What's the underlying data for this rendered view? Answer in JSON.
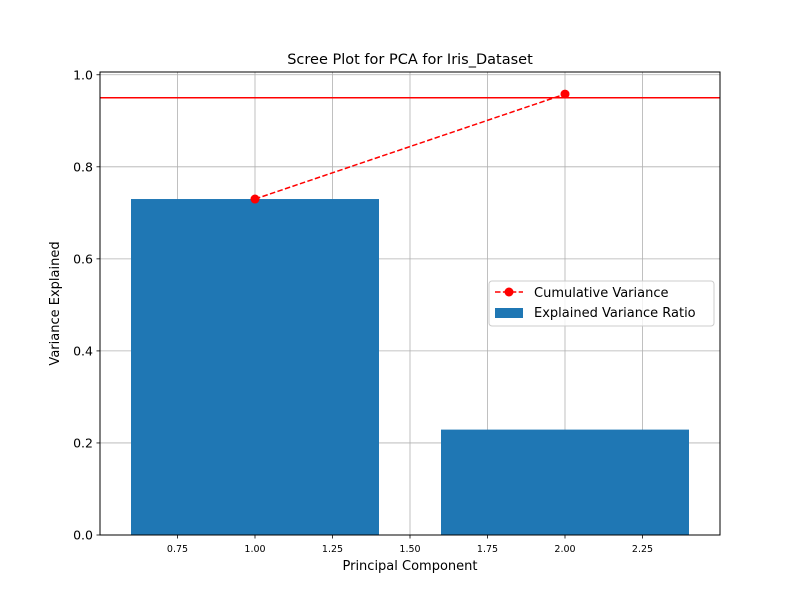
{
  "chart_data": {
    "type": "bar",
    "title": "Scree Plot for PCA for Iris_Dataset",
    "xlabel": "Principal Component",
    "ylabel": "Variance Explained",
    "xlim": [
      0.5,
      2.5
    ],
    "ylim": [
      0,
      1.0
    ],
    "xticks": [
      "0.75",
      "1.00",
      "1.25",
      "1.50",
      "1.75",
      "2.00",
      "2.25"
    ],
    "xtick_values": [
      0.75,
      1.0,
      1.25,
      1.5,
      1.75,
      2.0,
      2.25
    ],
    "yticks": [
      "0.0",
      "0.2",
      "0.4",
      "0.6",
      "0.8",
      "1.0"
    ],
    "ytick_values": [
      0.0,
      0.2,
      0.4,
      0.6,
      0.8,
      1.0
    ],
    "grid": true,
    "legend_position": "center-right",
    "bars": {
      "name": "Explained Variance Ratio",
      "x": [
        1,
        2
      ],
      "values": [
        0.73,
        0.229
      ],
      "width": 0.8,
      "color": "#1f77b4"
    },
    "line": {
      "name": "Cumulative Variance",
      "x": [
        1,
        2
      ],
      "values": [
        0.73,
        0.958
      ],
      "color": "#ff0000",
      "style": "dashed",
      "marker": "circle"
    },
    "threshold": {
      "value": 0.95,
      "color": "#ff0000"
    }
  }
}
